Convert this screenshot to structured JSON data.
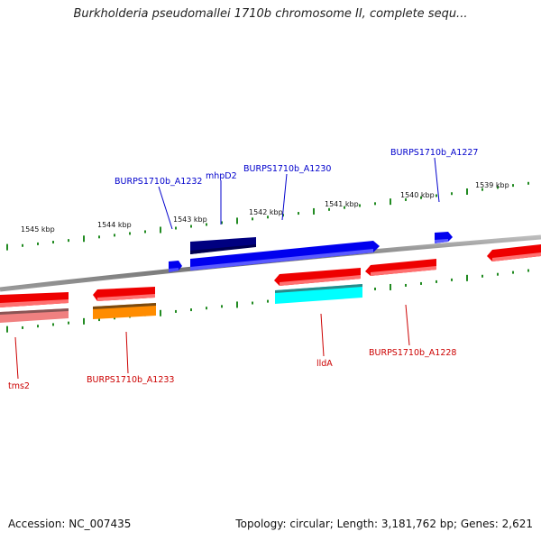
{
  "title": "Burkholderia pseudomallei 1710b chromosome II, complete sequ...",
  "footer": {
    "accession": "Accession: NC_007435",
    "stats": "Topology: circular; Length: 3,181,762 bp; Genes: 2,621"
  },
  "colors": {
    "backbone": "#808080",
    "tick": "#228b22",
    "forward_gene": "#0000ee",
    "forward_gene_dark": "#000080",
    "reverse_gene": "#ee0000",
    "reverse_gene_light": "#f08080",
    "orange_gene": "#ff8c00",
    "cyan_gene": "#00ffff",
    "label_blue": "#0000cc",
    "label_red": "#cc0000"
  },
  "kbp_labels": [
    "1545 kbp",
    "1544 kbp",
    "1543 kbp",
    "1542 kbp",
    "1541 kbp",
    "1540 kbp",
    "1539 kbp"
  ],
  "top_labels": [
    "BURPS1710b_A1232",
    "mhpD2",
    "BURPS1710b_A1230",
    "BURPS1710b_A1227"
  ],
  "bottom_labels": [
    "tms2",
    "BURPS1710b_A1233",
    "lldA",
    "BURPS1710b_A1228"
  ]
}
